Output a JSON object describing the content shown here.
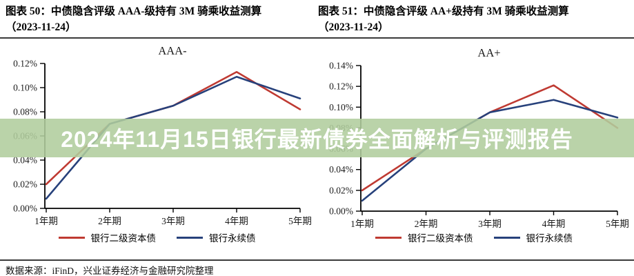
{
  "banner": {
    "text": "2024年11月15日银行最新债券全面解析与评测报告",
    "bg_color": "rgba(177,205,157,0.88)",
    "text_color": "#ffffff"
  },
  "source_note": "数据来源：iFinD，兴业证券经济与金融研究院整理",
  "chart_data": [
    {
      "type": "line",
      "caption_line1": "图表 50：中债隐含评级 AAA-级持有 3M 骑乘收益测算",
      "caption_line2": "（2023-11-24）",
      "title": "AAA-",
      "categories": [
        "1年期",
        "2年期",
        "3年期",
        "4年期",
        "5年期"
      ],
      "series": [
        {
          "name": "银行二级资本债",
          "color": "#bf3a32",
          "values_pct": [
            0.02,
            0.07,
            0.085,
            0.113,
            0.082
          ]
        },
        {
          "name": "银行永续债",
          "color": "#27417b",
          "values_pct": [
            0.008,
            0.07,
            0.085,
            0.109,
            0.091
          ]
        }
      ],
      "ylim_pct": [
        0,
        0.12
      ],
      "ytick_step_pct": 0.02,
      "ytick_labels": [
        "0.00%",
        "0.02%",
        "0.04%",
        "0.06%",
        "0.08%",
        "0.10%",
        "0.12%"
      ],
      "xlabel": "",
      "ylabel": "",
      "grid": false,
      "legend_position": "bottom"
    },
    {
      "type": "line",
      "caption_line1": "图表 51：中债隐含评级 AA+级持有 3M 骑乘收益测算",
      "caption_line2": "（2023-11-24）",
      "title": "AA+",
      "categories": [
        "1年期",
        "2年期",
        "3年期",
        "4年期",
        "5年期"
      ],
      "series": [
        {
          "name": "银行二级资本债",
          "color": "#bf3a32",
          "values_pct": [
            0.02,
            0.06,
            0.095,
            0.121,
            0.08
          ]
        },
        {
          "name": "银行永续债",
          "color": "#27417b",
          "values_pct": [
            0.01,
            0.06,
            0.095,
            0.107,
            0.09
          ]
        }
      ],
      "ylim_pct": [
        0,
        0.14
      ],
      "ytick_step_pct": 0.02,
      "ytick_labels": [
        "0.00%",
        "0.02%",
        "0.04%",
        "0.06%",
        "0.08%",
        "0.10%",
        "0.12%",
        "0.14%"
      ],
      "xlabel": "",
      "ylabel": "",
      "grid": false,
      "legend_position": "bottom"
    }
  ]
}
